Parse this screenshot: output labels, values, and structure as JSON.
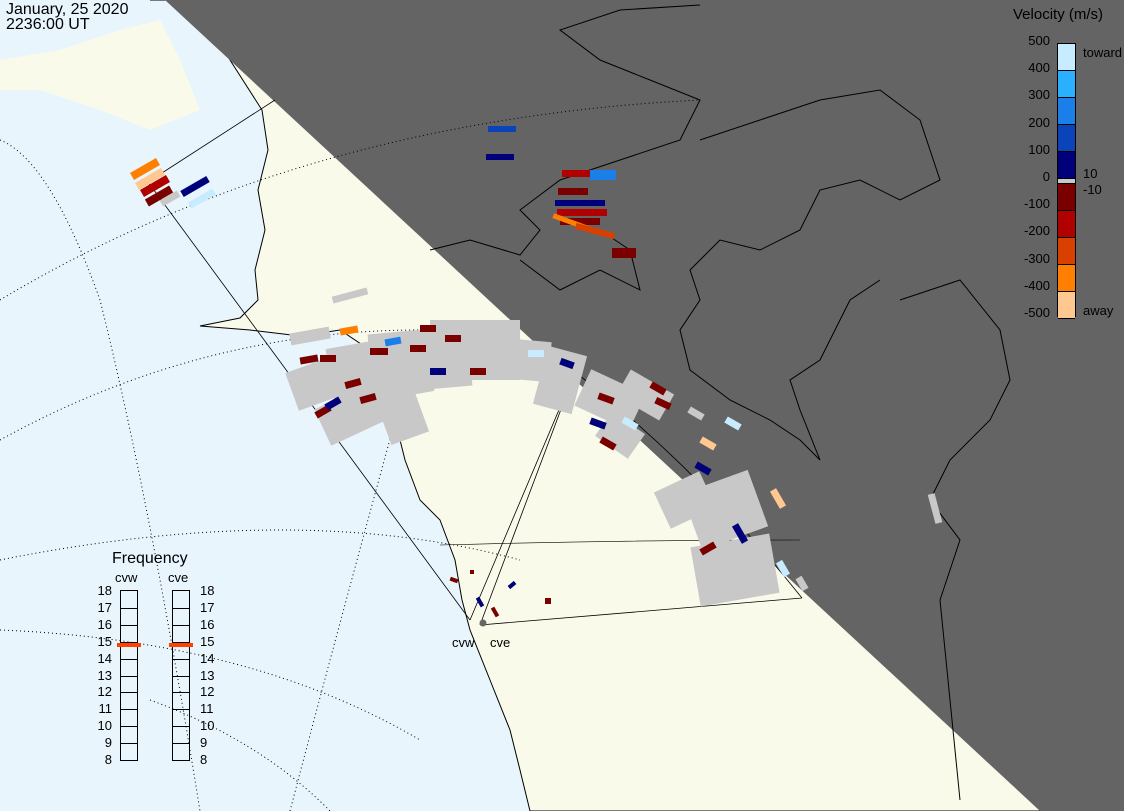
{
  "header": {
    "date": "January, 25 2020",
    "time": "2236:00 UT"
  },
  "colorbar": {
    "title": "Velocity (m/s)",
    "ticks": [
      "500",
      "400",
      "300",
      "200",
      "100",
      "0",
      "-100",
      "-200",
      "-300",
      "-400",
      "-500"
    ],
    "label_toward": "toward",
    "label_away": "away",
    "label_pos": "10",
    "label_neg": "-10",
    "colors_toward": [
      "#c8ecff",
      "#2ab0ff",
      "#1a7fe8",
      "#0a44b8",
      "#00007a"
    ],
    "color_ground": "#c8c8c8",
    "colors_away": [
      "#7a0000",
      "#b00000",
      "#d84000",
      "#ff8000",
      "#ffc890"
    ]
  },
  "frequency": {
    "title": "Frequency",
    "radars": [
      {
        "name": "cvw",
        "value_mhz": 14.8
      },
      {
        "name": "cve",
        "value_mhz": 14.8
      }
    ],
    "ticks": [
      "18",
      "17",
      "16",
      "15",
      "14",
      "13",
      "12",
      "11",
      "10",
      "9",
      "8"
    ],
    "marker_color": "#ff4000"
  },
  "sites": [
    {
      "name": "cvw"
    },
    {
      "name": "cve"
    }
  ],
  "map": {
    "ocean_color": "#e8f5fd",
    "land_color": "#fafaea",
    "night_color": "#646464"
  }
}
